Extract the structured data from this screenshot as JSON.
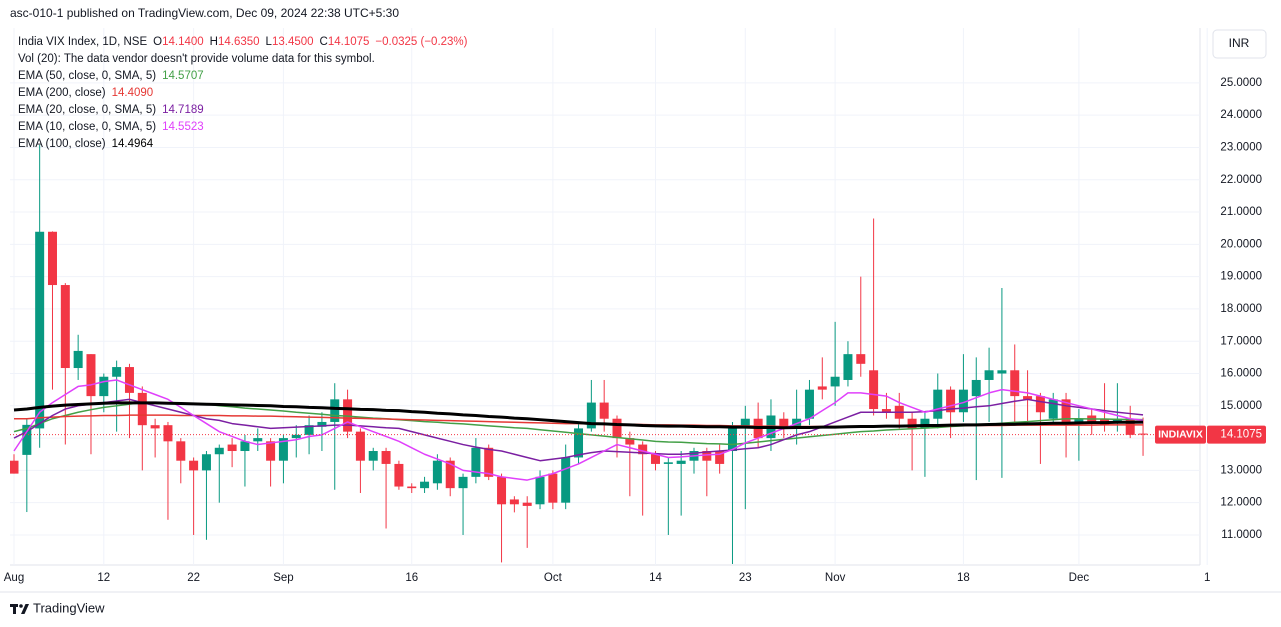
{
  "header": "asc-010-1 published on TradingView.com, Dec 09, 2024 22:38 UTC+5:30",
  "footer": "TradingView",
  "chart_data": {
    "type": "candlestick",
    "symbol": "India VIX Index, 1D, NSE",
    "ohlc": [
      {
        "letter": "O",
        "text": "14.1400"
      },
      {
        "letter": "H",
        "text": "14.6350"
      },
      {
        "letter": "L",
        "text": "13.4500"
      },
      {
        "letter": "C",
        "text": "14.1075"
      }
    ],
    "change": "−0.0325 (−0.23%)",
    "note": "Vol (20): The data vendor doesn't provide volume data for this symbol.",
    "currency": "INR",
    "price_tag": {
      "symbol": "INDIAVIX",
      "label": "14.1075"
    },
    "up_color": "#089981",
    "down_color": "#f23645",
    "categories": [
      "Aug",
      null,
      null,
      null,
      null,
      null,
      null,
      "12",
      null,
      null,
      null,
      null,
      null,
      null,
      "22",
      null,
      null,
      null,
      null,
      null,
      null,
      "Sep",
      null,
      null,
      null,
      null,
      null,
      null,
      null,
      null,
      null,
      "16",
      null,
      null,
      null,
      null,
      null,
      null,
      null,
      null,
      null,
      null,
      "Oct",
      null,
      null,
      null,
      null,
      null,
      null,
      null,
      "14",
      null,
      null,
      null,
      null,
      null,
      null,
      "23",
      null,
      null,
      null,
      null,
      null,
      null,
      "Nov",
      null,
      null,
      null,
      null,
      null,
      null,
      null,
      null,
      null,
      "18",
      null,
      null,
      null,
      null,
      null,
      null,
      null,
      null,
      "Dec",
      null,
      null,
      null,
      null,
      null,
      null,
      null,
      null,
      null,
      "1"
    ],
    "open": [
      13.3,
      13.48,
      14.3,
      20.39,
      18.74,
      16.17,
      16.6,
      15.3,
      15.9,
      16.2,
      15.4,
      14.4,
      14.4,
      13.9,
      13.3,
      13.0,
      13.5,
      13.8,
      13.6,
      13.9,
      13.9,
      13.3,
      14.0,
      14.1,
      14.35,
      14.5,
      15.2,
      14.2,
      13.3,
      13.6,
      13.2,
      12.5,
      12.45,
      12.6,
      13.3,
      12.45,
      12.8,
      13.7,
      12.8,
      12.1,
      12.0,
      11.95,
      12.9,
      12.0,
      13.4,
      14.3,
      15.1,
      14.6,
      14.0,
      13.8,
      13.5,
      13.2,
      13.2,
      13.3,
      13.6,
      13.6,
      13.6,
      14.3,
      14.6,
      14.0,
      14.6,
      14.3,
      14.6,
      15.6,
      15.6,
      15.8,
      16.6,
      16.1,
      14.9,
      15.0,
      14.6,
      14.3,
      14.6,
      15.5,
      14.8,
      15.3,
      15.8,
      16.0,
      16.1,
      15.3,
      15.3,
      14.6,
      15.2,
      14.5,
      14.7,
      14.6,
      14.5,
      14.6,
      14.14,
      null,
      null,
      null,
      null,
      null
    ],
    "high": [
      13.5,
      14.6,
      23.08,
      20.4,
      18.8,
      17.2,
      16.6,
      16.0,
      16.4,
      16.3,
      15.6,
      14.6,
      14.5,
      14.0,
      13.4,
      13.6,
      13.8,
      14.0,
      14.1,
      14.3,
      14.0,
      14.1,
      14.4,
      14.7,
      14.8,
      15.7,
      15.5,
      14.3,
      13.7,
      13.7,
      13.3,
      12.6,
      12.8,
      13.5,
      13.4,
      12.9,
      14.0,
      13.8,
      12.9,
      12.2,
      12.2,
      13.0,
      13.0,
      13.8,
      14.5,
      15.8,
      15.8,
      14.7,
      14.2,
      13.9,
      13.6,
      13.4,
      13.6,
      13.7,
      13.7,
      13.8,
      14.5,
      15.0,
      15.1,
      15.2,
      14.8,
      15.5,
      15.8,
      16.5,
      17.6,
      17.0,
      19.0,
      20.8,
      15.4,
      15.4,
      14.8,
      14.8,
      16.0,
      15.6,
      16.6,
      16.5,
      16.8,
      18.65,
      16.9,
      16.1,
      15.4,
      15.4,
      15.4,
      14.9,
      14.9,
      15.7,
      15.7,
      15.0,
      14.635,
      null,
      null,
      null,
      null,
      null
    ],
    "low": [
      12.9,
      11.71,
      13.7,
      15.5,
      13.8,
      15.8,
      13.5,
      14.8,
      14.2,
      14.0,
      13.0,
      13.4,
      11.47,
      12.6,
      11.0,
      10.85,
      12.0,
      13.1,
      12.5,
      13.6,
      12.5,
      12.6,
      13.4,
      13.5,
      13.6,
      12.4,
      14.0,
      12.3,
      13.0,
      11.2,
      12.4,
      12.3,
      12.3,
      12.4,
      12.2,
      11.0,
      12.6,
      12.7,
      10.15,
      11.7,
      10.6,
      11.8,
      11.8,
      11.8,
      13.2,
      14.2,
      14.2,
      13.4,
      12.2,
      11.6,
      13.0,
      11.0,
      11.6,
      12.9,
      12.2,
      12.9,
      10.1,
      11.8,
      13.7,
      13.6,
      14.0,
      13.8,
      14.4,
      15.2,
      15.0,
      15.6,
      15.9,
      14.7,
      14.6,
      14.3,
      13.0,
      12.8,
      14.3,
      14.0,
      14.5,
      12.7,
      14.5,
      12.77,
      14.5,
      14.4,
      13.2,
      14.4,
      13.4,
      13.3,
      14.1,
      14.2,
      14.2,
      14.0,
      13.45,
      null,
      null,
      null,
      null,
      null
    ],
    "close": [
      12.9,
      14.41,
      20.39,
      18.74,
      16.17,
      16.7,
      15.3,
      15.9,
      16.2,
      15.4,
      14.4,
      14.3,
      13.9,
      13.3,
      13.0,
      13.5,
      13.7,
      13.6,
      13.9,
      14.0,
      13.3,
      14.0,
      14.1,
      14.4,
      14.5,
      15.2,
      14.2,
      13.3,
      13.6,
      13.2,
      12.5,
      12.45,
      12.65,
      13.3,
      12.45,
      12.8,
      13.7,
      12.8,
      11.95,
      11.95,
      11.9,
      12.8,
      12.0,
      13.4,
      14.3,
      15.1,
      14.6,
      14.0,
      13.8,
      13.5,
      13.2,
      13.25,
      13.3,
      13.6,
      13.3,
      13.2,
      14.3,
      14.6,
      14.0,
      14.7,
      14.3,
      14.6,
      15.5,
      15.5,
      15.9,
      16.6,
      16.3,
      14.9,
      14.8,
      14.6,
      14.3,
      14.6,
      15.5,
      14.8,
      15.5,
      15.8,
      16.1,
      16.1,
      15.3,
      15.2,
      14.8,
      15.2,
      14.5,
      14.6,
      14.5,
      14.4,
      14.6,
      14.1,
      14.1075,
      null,
      null,
      null,
      null,
      null
    ],
    "series": [
      {
        "name": "EMA (50, close, 0, SMA, 5)",
        "legend_value": "14.5707",
        "color": "#43a047",
        "width": 1.5,
        "values": [
          14.2,
          14.3,
          14.45,
          14.6,
          14.7,
          14.8,
          14.88,
          14.95,
          15.0,
          15.05,
          15.1,
          15.1,
          15.09,
          15.08,
          15.06,
          15.05,
          15.0,
          14.97,
          14.93,
          14.9,
          14.87,
          14.84,
          14.8,
          14.77,
          14.74,
          14.7,
          14.68,
          14.65,
          14.62,
          14.6,
          14.57,
          14.54,
          14.51,
          14.49,
          14.46,
          14.44,
          14.41,
          14.38,
          14.35,
          14.32,
          14.3,
          14.26,
          14.22,
          14.18,
          14.14,
          14.1,
          14.06,
          14.02,
          13.98,
          13.94,
          13.9,
          13.88,
          13.87,
          13.85,
          13.83,
          13.82,
          13.8,
          13.84,
          13.88,
          13.92,
          13.96,
          14.0,
          14.04,
          14.08,
          14.12,
          14.16,
          14.2,
          14.22,
          14.25,
          14.27,
          14.29,
          14.31,
          14.33,
          14.36,
          14.38,
          14.4,
          14.43,
          14.46,
          14.49,
          14.51,
          14.54,
          14.57,
          14.6,
          14.6,
          14.59,
          14.59,
          14.58,
          14.58,
          14.5707,
          null,
          null,
          null,
          null,
          null
        ]
      },
      {
        "name": "EMA (200, close)",
        "legend_value": "14.4090",
        "color": "#e53935",
        "width": 1.5,
        "values": [
          14.6,
          14.6,
          14.63,
          14.65,
          14.67,
          14.68,
          14.69,
          14.7,
          14.7,
          14.71,
          14.71,
          14.71,
          14.71,
          14.7,
          14.7,
          14.7,
          14.7,
          14.69,
          14.69,
          14.68,
          14.68,
          14.67,
          14.66,
          14.65,
          14.64,
          14.63,
          14.62,
          14.61,
          14.6,
          14.59,
          14.58,
          14.57,
          14.56,
          14.55,
          14.54,
          14.53,
          14.52,
          14.51,
          14.5,
          14.49,
          14.48,
          14.47,
          14.46,
          14.45,
          14.45,
          14.44,
          14.44,
          14.43,
          14.43,
          14.42,
          14.41,
          14.41,
          14.4,
          14.4,
          14.39,
          14.39,
          14.38,
          14.38,
          14.37,
          14.37,
          14.36,
          14.36,
          14.36,
          14.36,
          14.36,
          14.36,
          14.37,
          14.37,
          14.37,
          14.37,
          14.38,
          14.38,
          14.38,
          14.38,
          14.39,
          14.39,
          14.39,
          14.39,
          14.4,
          14.4,
          14.4,
          14.4,
          14.4,
          14.4,
          14.4,
          14.41,
          14.41,
          14.41,
          14.409,
          null,
          null,
          null,
          null,
          null
        ]
      },
      {
        "name": "EMA (20, close, 0, SMA, 5)",
        "legend_value": "14.7189",
        "color": "#7b1fa2",
        "width": 1.5,
        "values": [
          14.0,
          14.2,
          14.45,
          14.7,
          14.9,
          15.0,
          15.05,
          15.1,
          15.15,
          15.2,
          15.1,
          15.0,
          14.9,
          14.8,
          14.7,
          14.6,
          14.55,
          14.45,
          14.4,
          14.35,
          14.3,
          14.32,
          14.34,
          14.36,
          14.38,
          14.4,
          14.4,
          14.38,
          14.35,
          14.32,
          14.3,
          14.2,
          14.1,
          14.0,
          13.9,
          13.8,
          13.72,
          13.65,
          13.6,
          13.5,
          13.4,
          13.3,
          13.35,
          13.4,
          13.48,
          13.55,
          13.6,
          13.58,
          13.56,
          13.54,
          13.52,
          13.5,
          13.5,
          13.53,
          13.57,
          13.6,
          13.63,
          13.67,
          13.7,
          13.8,
          13.95,
          14.1,
          14.2,
          14.35,
          14.5,
          14.65,
          14.8,
          14.8,
          14.8,
          14.8,
          14.8,
          14.82,
          14.85,
          14.9,
          14.93,
          14.97,
          15.0,
          15.07,
          15.14,
          15.2,
          15.13,
          15.07,
          15.0,
          14.95,
          14.9,
          14.85,
          14.8,
          14.76,
          14.7189,
          null,
          null,
          null,
          null,
          null
        ]
      },
      {
        "name": "EMA (10, close, 0, SMA, 5)",
        "legend_value": "14.5523",
        "color": "#e040fb",
        "width": 1.5,
        "values": [
          13.6,
          14.2,
          14.8,
          15.1,
          15.35,
          15.6,
          15.65,
          15.75,
          15.8,
          15.65,
          15.5,
          15.35,
          15.2,
          14.95,
          14.7,
          14.45,
          14.2,
          14.05,
          13.9,
          13.8,
          13.85,
          13.9,
          13.95,
          14.05,
          14.1,
          14.3,
          14.5,
          14.35,
          14.2,
          14.05,
          13.9,
          13.7,
          13.5,
          13.35,
          13.2,
          13.0,
          12.95,
          12.9,
          12.8,
          12.75,
          12.7,
          12.8,
          12.9,
          13.05,
          13.2,
          13.4,
          13.6,
          13.8,
          13.7,
          13.6,
          13.5,
          13.4,
          13.42,
          13.45,
          13.48,
          13.5,
          13.65,
          13.85,
          14.0,
          14.15,
          14.3,
          14.45,
          14.6,
          14.85,
          15.1,
          15.4,
          15.4,
          15.35,
          15.3,
          15.1,
          14.95,
          14.8,
          14.9,
          15.0,
          15.1,
          15.25,
          15.4,
          15.5,
          15.45,
          15.4,
          15.3,
          15.2,
          15.1,
          15.0,
          14.9,
          14.8,
          14.7,
          14.6,
          14.5523,
          null,
          null,
          null,
          null,
          null
        ]
      },
      {
        "name": "EMA (100, close)",
        "legend_value": "14.4964",
        "color": "#000000",
        "width": 3,
        "values": [
          14.87,
          14.9,
          14.95,
          14.99,
          15.02,
          15.04,
          15.06,
          15.08,
          15.09,
          15.09,
          15.09,
          15.09,
          15.08,
          15.07,
          15.06,
          15.05,
          15.04,
          15.03,
          15.02,
          15.01,
          15.0,
          14.98,
          14.97,
          14.95,
          14.94,
          14.92,
          14.91,
          14.89,
          14.88,
          14.86,
          14.85,
          14.82,
          14.8,
          14.77,
          14.75,
          14.72,
          14.7,
          14.67,
          14.65,
          14.62,
          14.6,
          14.57,
          14.54,
          14.51,
          14.48,
          14.45,
          14.44,
          14.42,
          14.41,
          14.39,
          14.38,
          14.37,
          14.37,
          14.36,
          14.35,
          14.35,
          14.34,
          14.34,
          14.33,
          14.33,
          14.32,
          14.33,
          14.33,
          14.34,
          14.34,
          14.35,
          14.36,
          14.36,
          14.37,
          14.37,
          14.38,
          14.39,
          14.39,
          14.4,
          14.41,
          14.41,
          14.42,
          14.43,
          14.43,
          14.44,
          14.45,
          14.46,
          14.46,
          14.47,
          14.48,
          14.48,
          14.49,
          14.49,
          14.4964,
          null,
          null,
          null,
          null,
          null
        ]
      }
    ],
    "ylim": [
      10.07,
      26.7
    ],
    "yticks": [
      {
        "value": 11,
        "label": "11.0000"
      },
      {
        "value": 12,
        "label": "12.0000"
      },
      {
        "value": 13,
        "label": "13.0000"
      },
      {
        "value": 14,
        "label": "14.0000"
      },
      {
        "value": 15,
        "label": "15.0000"
      },
      {
        "value": 16,
        "label": "16.0000"
      },
      {
        "value": 17,
        "label": "17.0000"
      },
      {
        "value": 18,
        "label": "18.0000"
      },
      {
        "value": 19,
        "label": "19.0000"
      },
      {
        "value": 20,
        "label": "20.0000"
      },
      {
        "value": 21,
        "label": "21.0000"
      },
      {
        "value": 22,
        "label": "22.0000"
      },
      {
        "value": 23,
        "label": "23.0000"
      },
      {
        "value": 24,
        "label": "24.0000"
      },
      {
        "value": 25,
        "label": "25.0000"
      }
    ],
    "grid": true
  }
}
